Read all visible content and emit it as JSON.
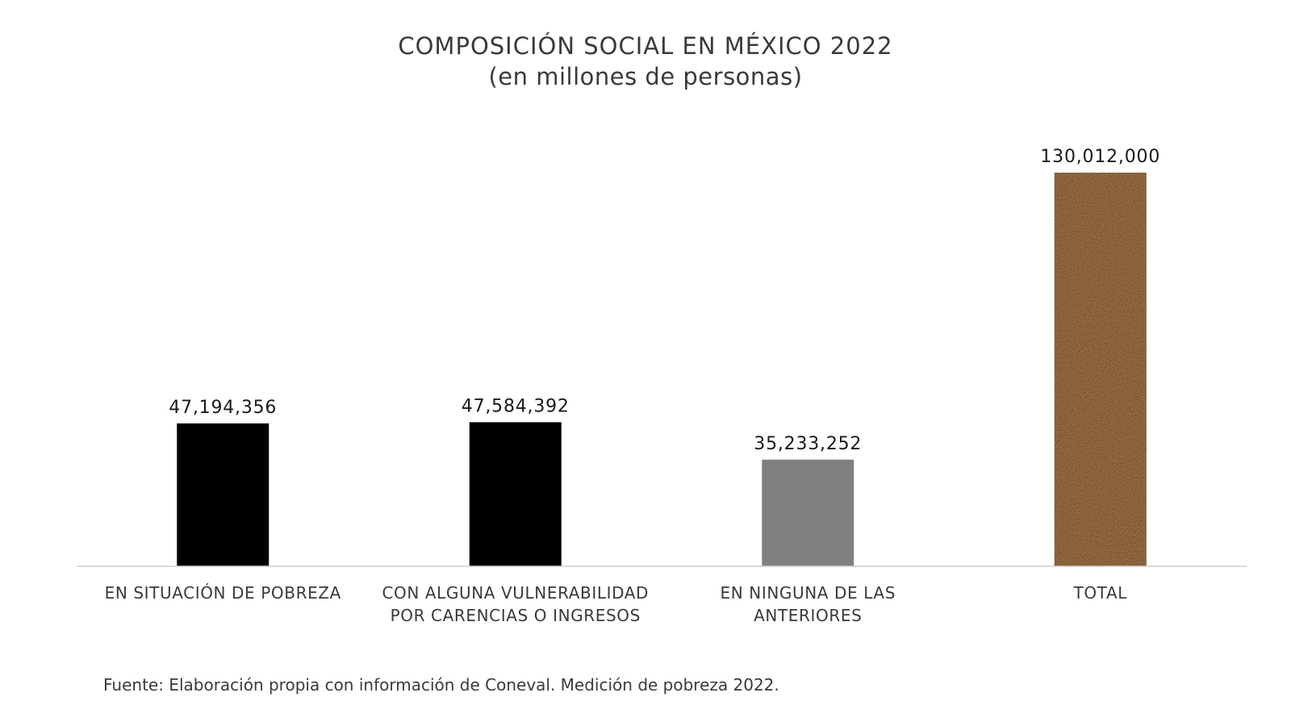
{
  "chart_data": {
    "type": "bar",
    "title": "COMPOSICIÓN SOCIAL EN MÉXICO 2022",
    "subtitle": "(en millones de personas)",
    "categories": [
      [
        "EN SITUACIÓN DE POBREZA"
      ],
      [
        "CON ALGUNA VULNERABILIDAD",
        "POR CARENCIAS O INGRESOS"
      ],
      [
        "EN NINGUNA DE LAS",
        "ANTERIORES"
      ],
      [
        "TOTAL"
      ]
    ],
    "values": [
      47194356,
      47584392,
      35233252,
      130012000
    ],
    "value_labels": [
      "47,194,356",
      "47,584,392",
      "35,233,252",
      "130,012,000"
    ],
    "colors": [
      "#000000",
      "#000000",
      "#808080",
      "#c08a56"
    ],
    "bar_styles": [
      "solid",
      "solid",
      "solid",
      "texture"
    ],
    "ylim": [
      0,
      130012000
    ],
    "grid": false,
    "xlabel": "",
    "ylabel": ""
  },
  "source": "Fuente: Elaboración propia con información de Coneval. Medición de pobreza 2022."
}
